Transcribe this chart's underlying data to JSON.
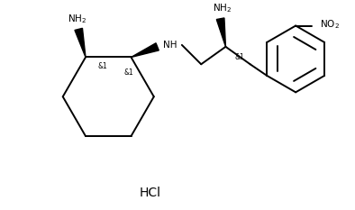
{
  "background": "#ffffff",
  "line_color": "#000000",
  "lw": 1.4,
  "figsize": [
    3.94,
    2.33
  ],
  "dpi": 100,
  "hcl_text": "HCl",
  "hcl_fontsize": 10
}
